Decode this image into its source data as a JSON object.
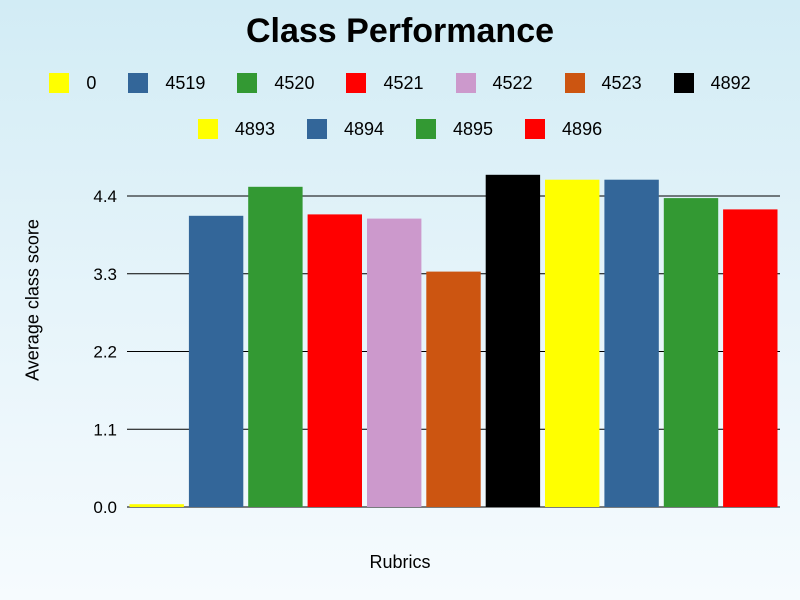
{
  "chart_data": {
    "type": "bar",
    "title": "Class Performance",
    "xlabel": "Rubrics",
    "ylabel": "Average class score",
    "ylim": [
      0,
      4.4
    ],
    "yticks": [
      "0.0",
      "1.1",
      "2.2",
      "3.3",
      "4.4"
    ],
    "grid": true,
    "legend_position": "top",
    "series": [
      {
        "name": "0",
        "value": 0.04,
        "color": "#ffff00"
      },
      {
        "name": "4519",
        "value": 4.12,
        "color": "#336699"
      },
      {
        "name": "4520",
        "value": 4.53,
        "color": "#339933"
      },
      {
        "name": "4521",
        "value": 4.14,
        "color": "#ff0000"
      },
      {
        "name": "4522",
        "value": 4.08,
        "color": "#cc99cc"
      },
      {
        "name": "4523",
        "value": 3.33,
        "color": "#cc5511"
      },
      {
        "name": "4892",
        "value": 4.7,
        "color": "#000000"
      },
      {
        "name": "4893",
        "value": 4.63,
        "color": "#ffff00"
      },
      {
        "name": "4894",
        "value": 4.63,
        "color": "#336699"
      },
      {
        "name": "4895",
        "value": 4.37,
        "color": "#339933"
      },
      {
        "name": "4896",
        "value": 4.21,
        "color": "#ff0000"
      }
    ]
  }
}
